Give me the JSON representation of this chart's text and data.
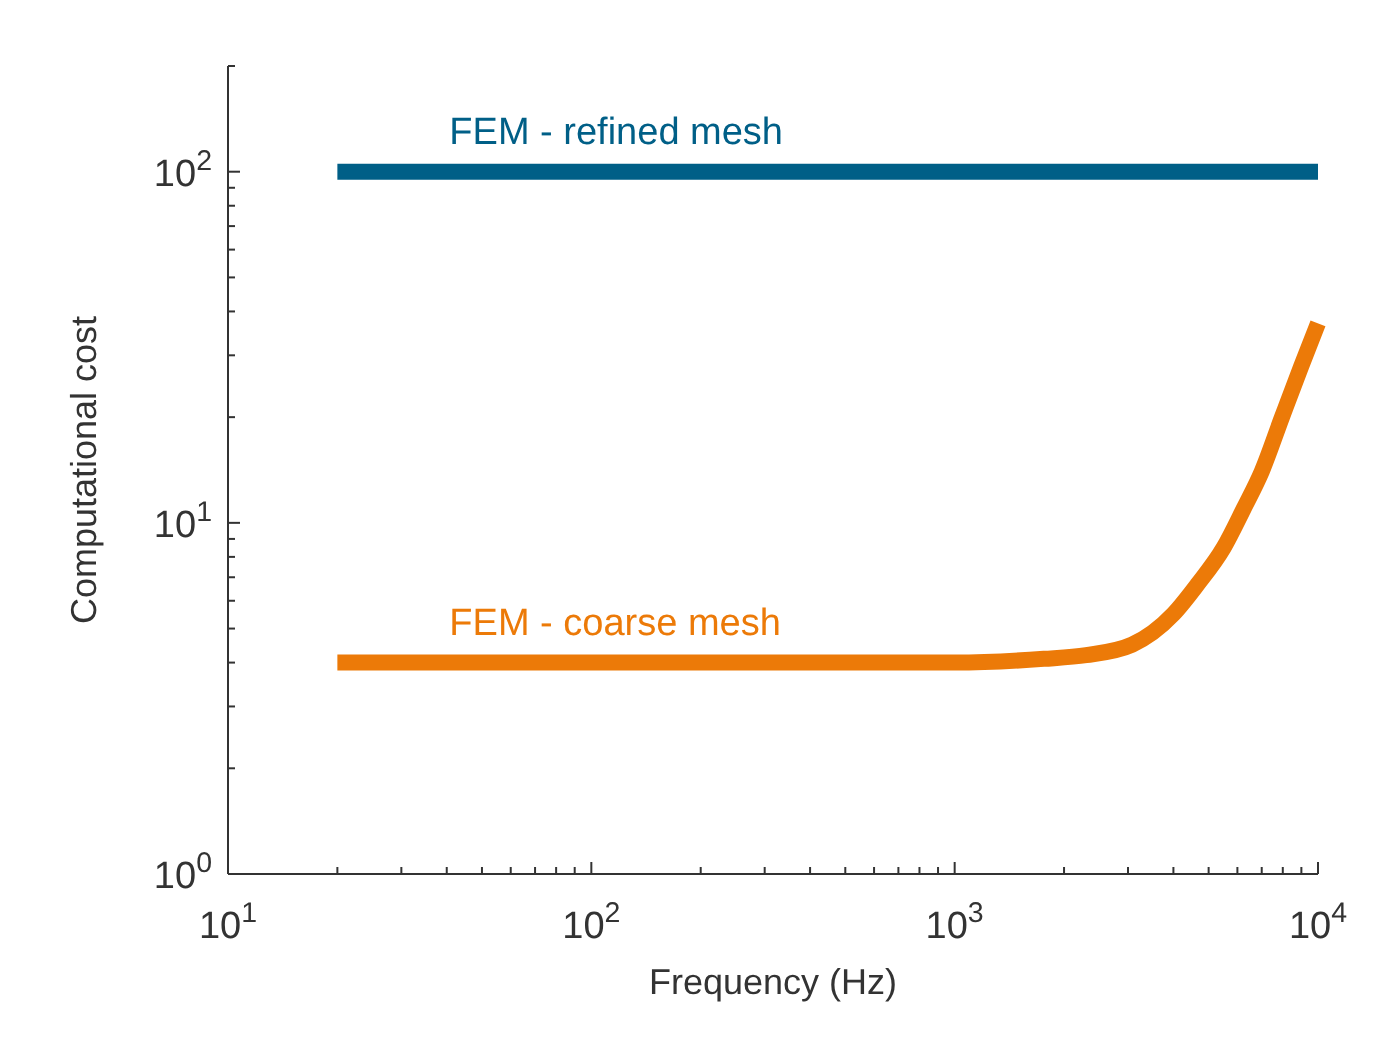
{
  "chart_data": {
    "type": "line",
    "xlabel": "Frequency (Hz)",
    "ylabel": "Computational cost",
    "log": "xy",
    "legend": false,
    "grid": false,
    "line_style": "solid",
    "marker": "none",
    "xlim": [
      10,
      10000
    ],
    "ylim": [
      1,
      200
    ],
    "xticks": [
      {
        "value": 10,
        "label": "10$^{1}$"
      },
      {
        "value": 20,
        "label": null
      },
      {
        "value": 30,
        "label": null
      },
      {
        "value": 40,
        "label": null
      },
      {
        "value": 50,
        "label": null
      },
      {
        "value": 60,
        "label": null
      },
      {
        "value": 70,
        "label": null
      },
      {
        "value": 80,
        "label": null
      },
      {
        "value": 90,
        "label": null
      },
      {
        "value": 100,
        "label": "10$^{2}$"
      },
      {
        "value": 200,
        "label": null
      },
      {
        "value": 300,
        "label": null
      },
      {
        "value": 400,
        "label": null
      },
      {
        "value": 500,
        "label": null
      },
      {
        "value": 600,
        "label": null
      },
      {
        "value": 700,
        "label": null
      },
      {
        "value": 800,
        "label": null
      },
      {
        "value": 900,
        "label": null
      },
      {
        "value": 1000,
        "label": "10$^{3}$"
      },
      {
        "value": 2000,
        "label": null
      },
      {
        "value": 3000,
        "label": null
      },
      {
        "value": 4000,
        "label": null
      },
      {
        "value": 5000,
        "label": null
      },
      {
        "value": 6000,
        "label": null
      },
      {
        "value": 7000,
        "label": null
      },
      {
        "value": 8000,
        "label": null
      },
      {
        "value": 9000,
        "label": null
      },
      {
        "value": 10000,
        "label": "10$^{4}$"
      }
    ],
    "yticks": [
      {
        "value": 1,
        "label": "10$^{0}$"
      },
      {
        "value": 2,
        "label": null
      },
      {
        "value": 3,
        "label": null
      },
      {
        "value": 4,
        "label": null
      },
      {
        "value": 5,
        "label": null
      },
      {
        "value": 6,
        "label": null
      },
      {
        "value": 7,
        "label": null
      },
      {
        "value": 8,
        "label": null
      },
      {
        "value": 9,
        "label": null
      },
      {
        "value": 10,
        "label": "10$^{1}$"
      },
      {
        "value": 20,
        "label": null
      },
      {
        "value": 30,
        "label": null
      },
      {
        "value": 40,
        "label": null
      },
      {
        "value": 50,
        "label": null
      },
      {
        "value": 60,
        "label": null
      },
      {
        "value": 70,
        "label": null
      },
      {
        "value": 80,
        "label": null
      },
      {
        "value": 90,
        "label": null
      },
      {
        "value": 100,
        "label": "10$^{2}$"
      },
      {
        "value": 200,
        "label": null
      }
    ],
    "series": [
      {
        "name": "FEM - refined mesh",
        "color": "#005f87",
        "x": [
          20,
          10000
        ],
        "values": [
          100,
          100
        ]
      },
      {
        "name": "FEM - coarse mesh",
        "color": "#ec7a08",
        "x": [
          20,
          100,
          1000,
          1760,
          2300,
          3080,
          4000,
          4670,
          5500,
          6250,
          7000,
          7960,
          9000,
          10000
        ],
        "values": [
          4,
          4,
          4,
          4.1,
          4.2,
          4.5,
          5.5,
          6.7,
          8.5,
          11,
          14,
          20,
          28,
          37
        ]
      }
    ]
  }
}
